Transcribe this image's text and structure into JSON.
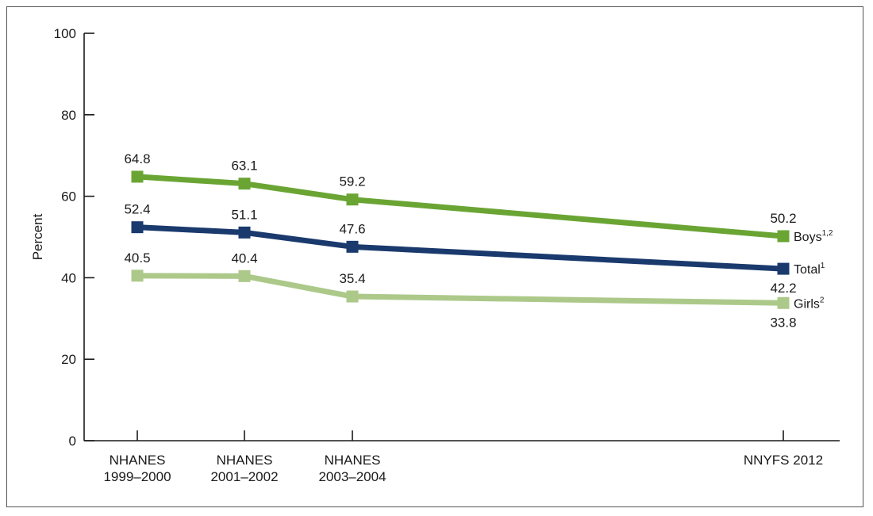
{
  "chart_data": {
    "type": "line",
    "ylabel": "Percent",
    "ylim": [
      0,
      100
    ],
    "yticks": [
      0,
      20,
      40,
      60,
      80,
      100
    ],
    "categories": [
      [
        "NHANES",
        "1999–2000"
      ],
      [
        "NHANES",
        "2001–2002"
      ],
      [
        "NHANES",
        "2003–2004"
      ],
      [
        "NNYFS 2012"
      ]
    ],
    "x": [
      1999.5,
      2001.5,
      2003.5,
      2012
    ],
    "series": [
      {
        "name": "Boys",
        "sup": "1,2",
        "values": [
          64.8,
          63.1,
          59.2,
          50.2
        ],
        "labels": [
          "64.8",
          "63.1",
          "59.2",
          "50.2"
        ],
        "color": "#6aa534",
        "label_pos": [
          "above",
          "above",
          "above",
          "above"
        ]
      },
      {
        "name": "Total",
        "sup": "1",
        "values": [
          52.4,
          51.1,
          47.6,
          42.2
        ],
        "labels": [
          "52.4",
          "51.1",
          "47.6",
          "42.2"
        ],
        "color": "#1a3a6e",
        "label_pos": [
          "above",
          "above",
          "above",
          "below"
        ]
      },
      {
        "name": "Girls",
        "sup": "2",
        "values": [
          40.5,
          40.4,
          35.4,
          33.8
        ],
        "labels": [
          "40.5",
          "40.4",
          "35.4",
          "33.8"
        ],
        "color": "#acc98a",
        "label_pos": [
          "above",
          "above",
          "above",
          "below"
        ]
      }
    ],
    "grid": false,
    "legend": "inline-right"
  }
}
